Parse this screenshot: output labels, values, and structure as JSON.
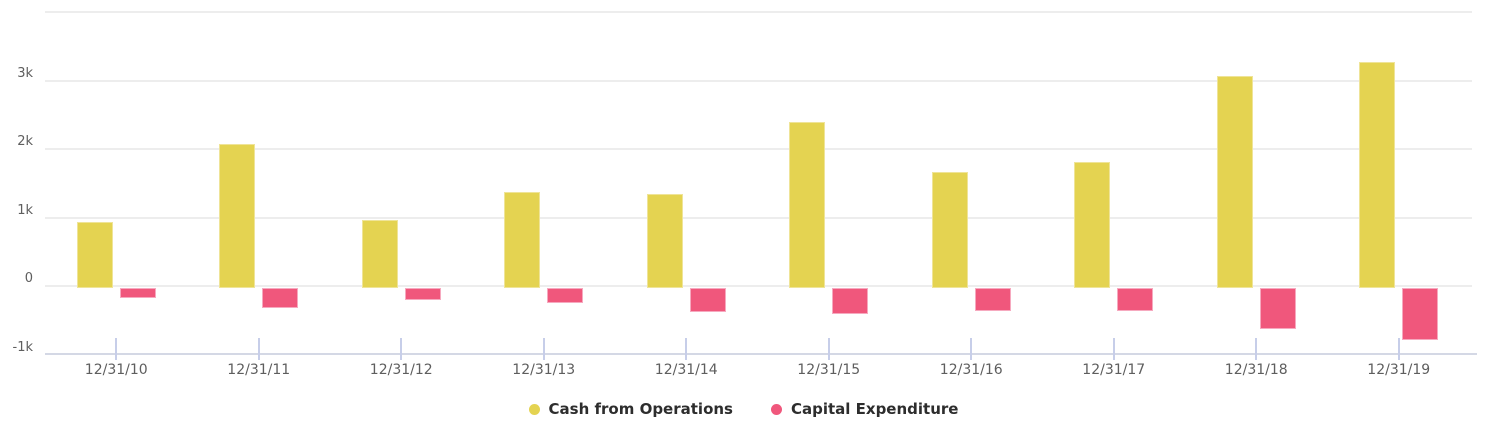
{
  "chart_data": {
    "type": "bar",
    "title": "",
    "categories": [
      "12/31/10",
      "12/31/11",
      "12/31/12",
      "12/31/13",
      "12/31/14",
      "12/31/15",
      "12/31/16",
      "12/31/17",
      "12/31/18",
      "12/31/19"
    ],
    "series": [
      {
        "name": "Cash from Operations",
        "color": "#e4d351",
        "border_color": "#efe498",
        "values": [
          940,
          2070,
          975,
          1375,
          1350,
          2400,
          1665,
          1810,
          3060,
          3270
        ]
      },
      {
        "name": "Capital Expenditure",
        "color": "#f0577c",
        "border_color": "#f6a9bf",
        "values": [
          -150,
          -290,
          -180,
          -225,
          -350,
          -375,
          -330,
          -330,
          -600,
          -765
        ]
      }
    ],
    "xlabel": "",
    "ylabel": "",
    "y_axis": {
      "min": -1000,
      "max": 4000,
      "tick_labels": [
        "3k",
        "2k",
        "1k",
        "0",
        "-1k"
      ],
      "tick_values": [
        3000,
        2000,
        1000,
        0,
        -1000
      ],
      "gridline_values": [
        4000,
        3000,
        2000,
        1000,
        0
      ],
      "grid": true
    },
    "legend_position": "bottom",
    "legend": [
      "Cash from Operations",
      "Capital Expenditure"
    ]
  },
  "colors": {
    "background": "#ffffff",
    "gridline": "#ededed",
    "axis_line": "#d4d8e5",
    "axis_tick": "#c7cee9",
    "axis_label": "#5e5e5e",
    "legend_text": "#2d2d2d"
  }
}
